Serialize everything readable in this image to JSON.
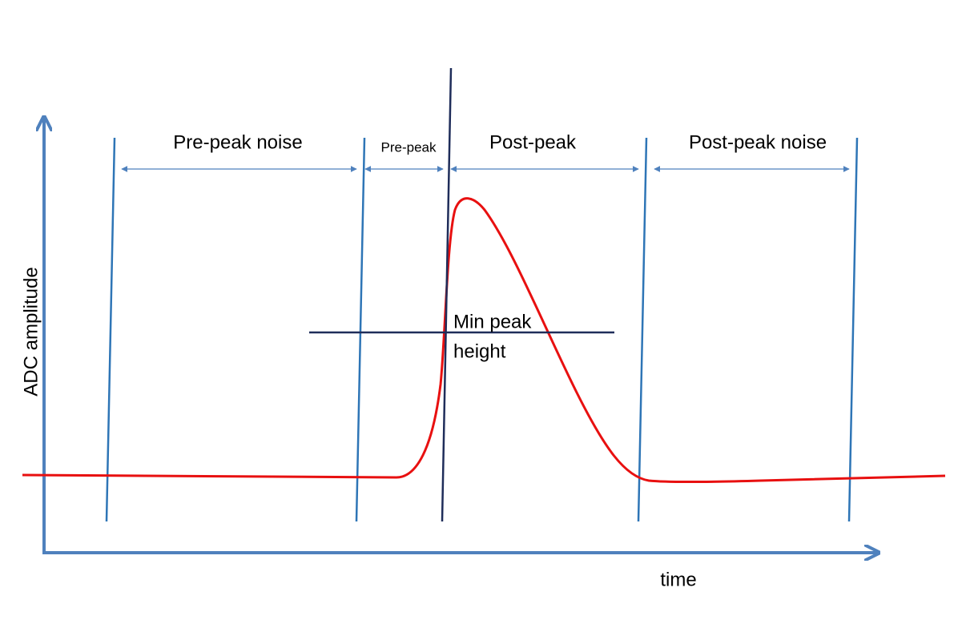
{
  "labels": {
    "pre_peak_noise": "Pre-peak noise",
    "pre_peak": "Pre-peak",
    "post_peak": "Post-peak",
    "post_peak_noise": "Post-peak noise",
    "min_peak_height": [
      "Min peak",
      "height"
    ]
  },
  "axes": {
    "y_label": "ADC amplitude",
    "x_label": "time"
  }
}
